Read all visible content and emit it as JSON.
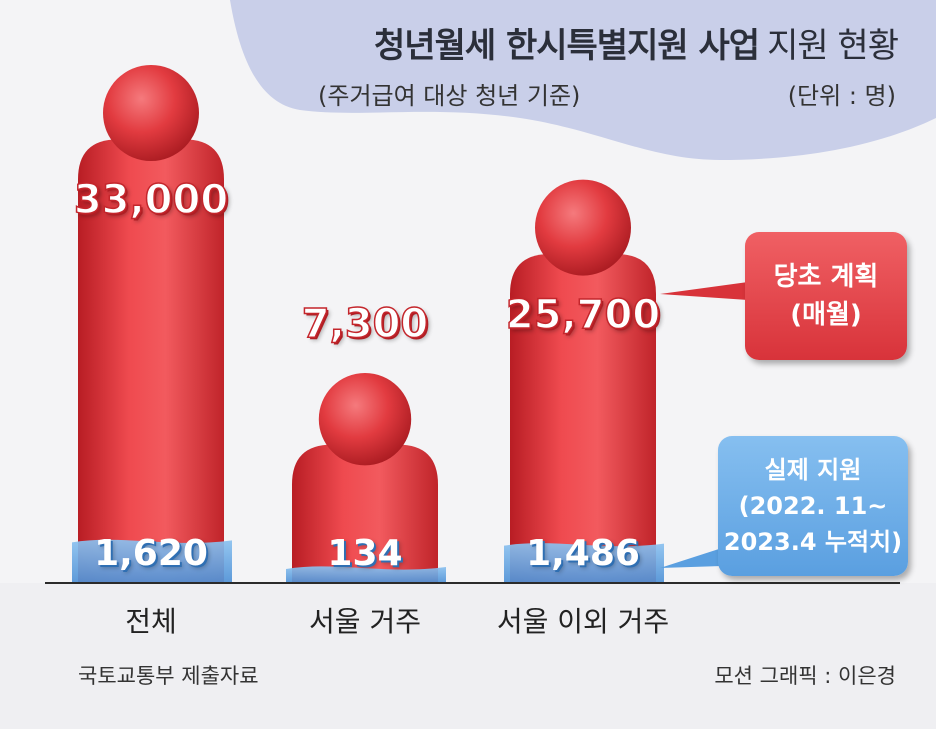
{
  "header": {
    "title_bold": "청년월세 한시특별지원 사업",
    "title_light": "지원 현황",
    "subtitle": "(주거급여 대상 청년 기준)",
    "unit": "(단위 : 명)"
  },
  "callouts": {
    "plan_line1": "당초 계획",
    "plan_line2": "(매월)",
    "actual_line1": "실제 지원",
    "actual_line2": "(2022. 11~",
    "actual_line3": "2023.4 누적치)"
  },
  "footer": {
    "source": "국토교통부 제출자료",
    "credit": "모션 그래픽 : 이은경"
  },
  "colors": {
    "plan": "#e23b40",
    "actual": "#6aaae8",
    "background": "#f4f4f6",
    "header_wave": "#c9cfe9"
  },
  "chart_data": {
    "type": "bar",
    "categories": [
      "전체",
      "서울 거주",
      "서울 이외 거주"
    ],
    "series": [
      {
        "name": "당초 계획 (매월)",
        "values": [
          33000,
          7300,
          25700
        ],
        "labels": [
          "33,000",
          "7,300",
          "25,700"
        ]
      },
      {
        "name": "실제 지원 (2022. 11~ 2023.4 누적치)",
        "values": [
          1620,
          134,
          1486
        ],
        "labels": [
          "1,620",
          "134",
          "1,486"
        ]
      }
    ],
    "title": "청년월세 한시특별지원 사업 지원 현황",
    "ylabel": "명",
    "ylim": [
      0,
      33000
    ],
    "grid": false,
    "legend": "right"
  }
}
